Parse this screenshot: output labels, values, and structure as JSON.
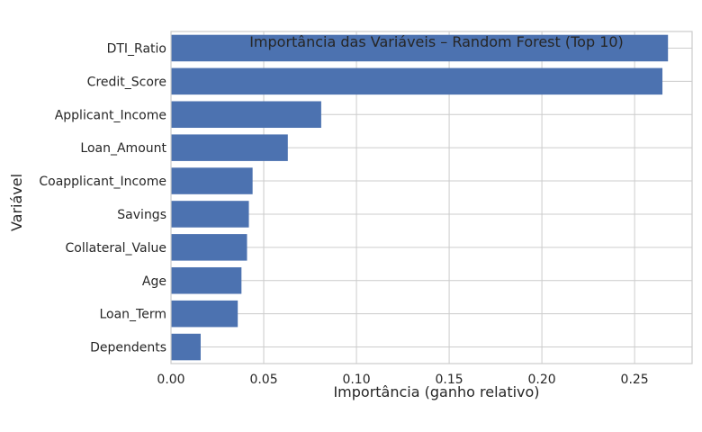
{
  "chart_data": {
    "type": "bar",
    "orientation": "horizontal",
    "title": "Importância das Variáveis – Random Forest (Top 10)",
    "xlabel": "Importância (ganho relativo)",
    "ylabel": "Variável",
    "categories": [
      "DTI_Ratio",
      "Credit_Score",
      "Applicant_Income",
      "Loan_Amount",
      "Coapplicant_Income",
      "Savings",
      "Collateral_Value",
      "Age",
      "Loan_Term",
      "Dependents"
    ],
    "values": [
      0.268,
      0.265,
      0.081,
      0.063,
      0.044,
      0.042,
      0.041,
      0.038,
      0.036,
      0.016
    ],
    "xlim": [
      0,
      0.281
    ],
    "xticks": [
      0.0,
      0.05,
      0.1,
      0.15,
      0.2,
      0.25
    ],
    "xtick_labels": [
      "0.00",
      "0.05",
      "0.10",
      "0.15",
      "0.20",
      "0.25"
    ],
    "grid": true,
    "legend": "none",
    "bar_color": "#4c72b0",
    "grid_color": "#cccccc",
    "spine_color": "#cccccc"
  }
}
